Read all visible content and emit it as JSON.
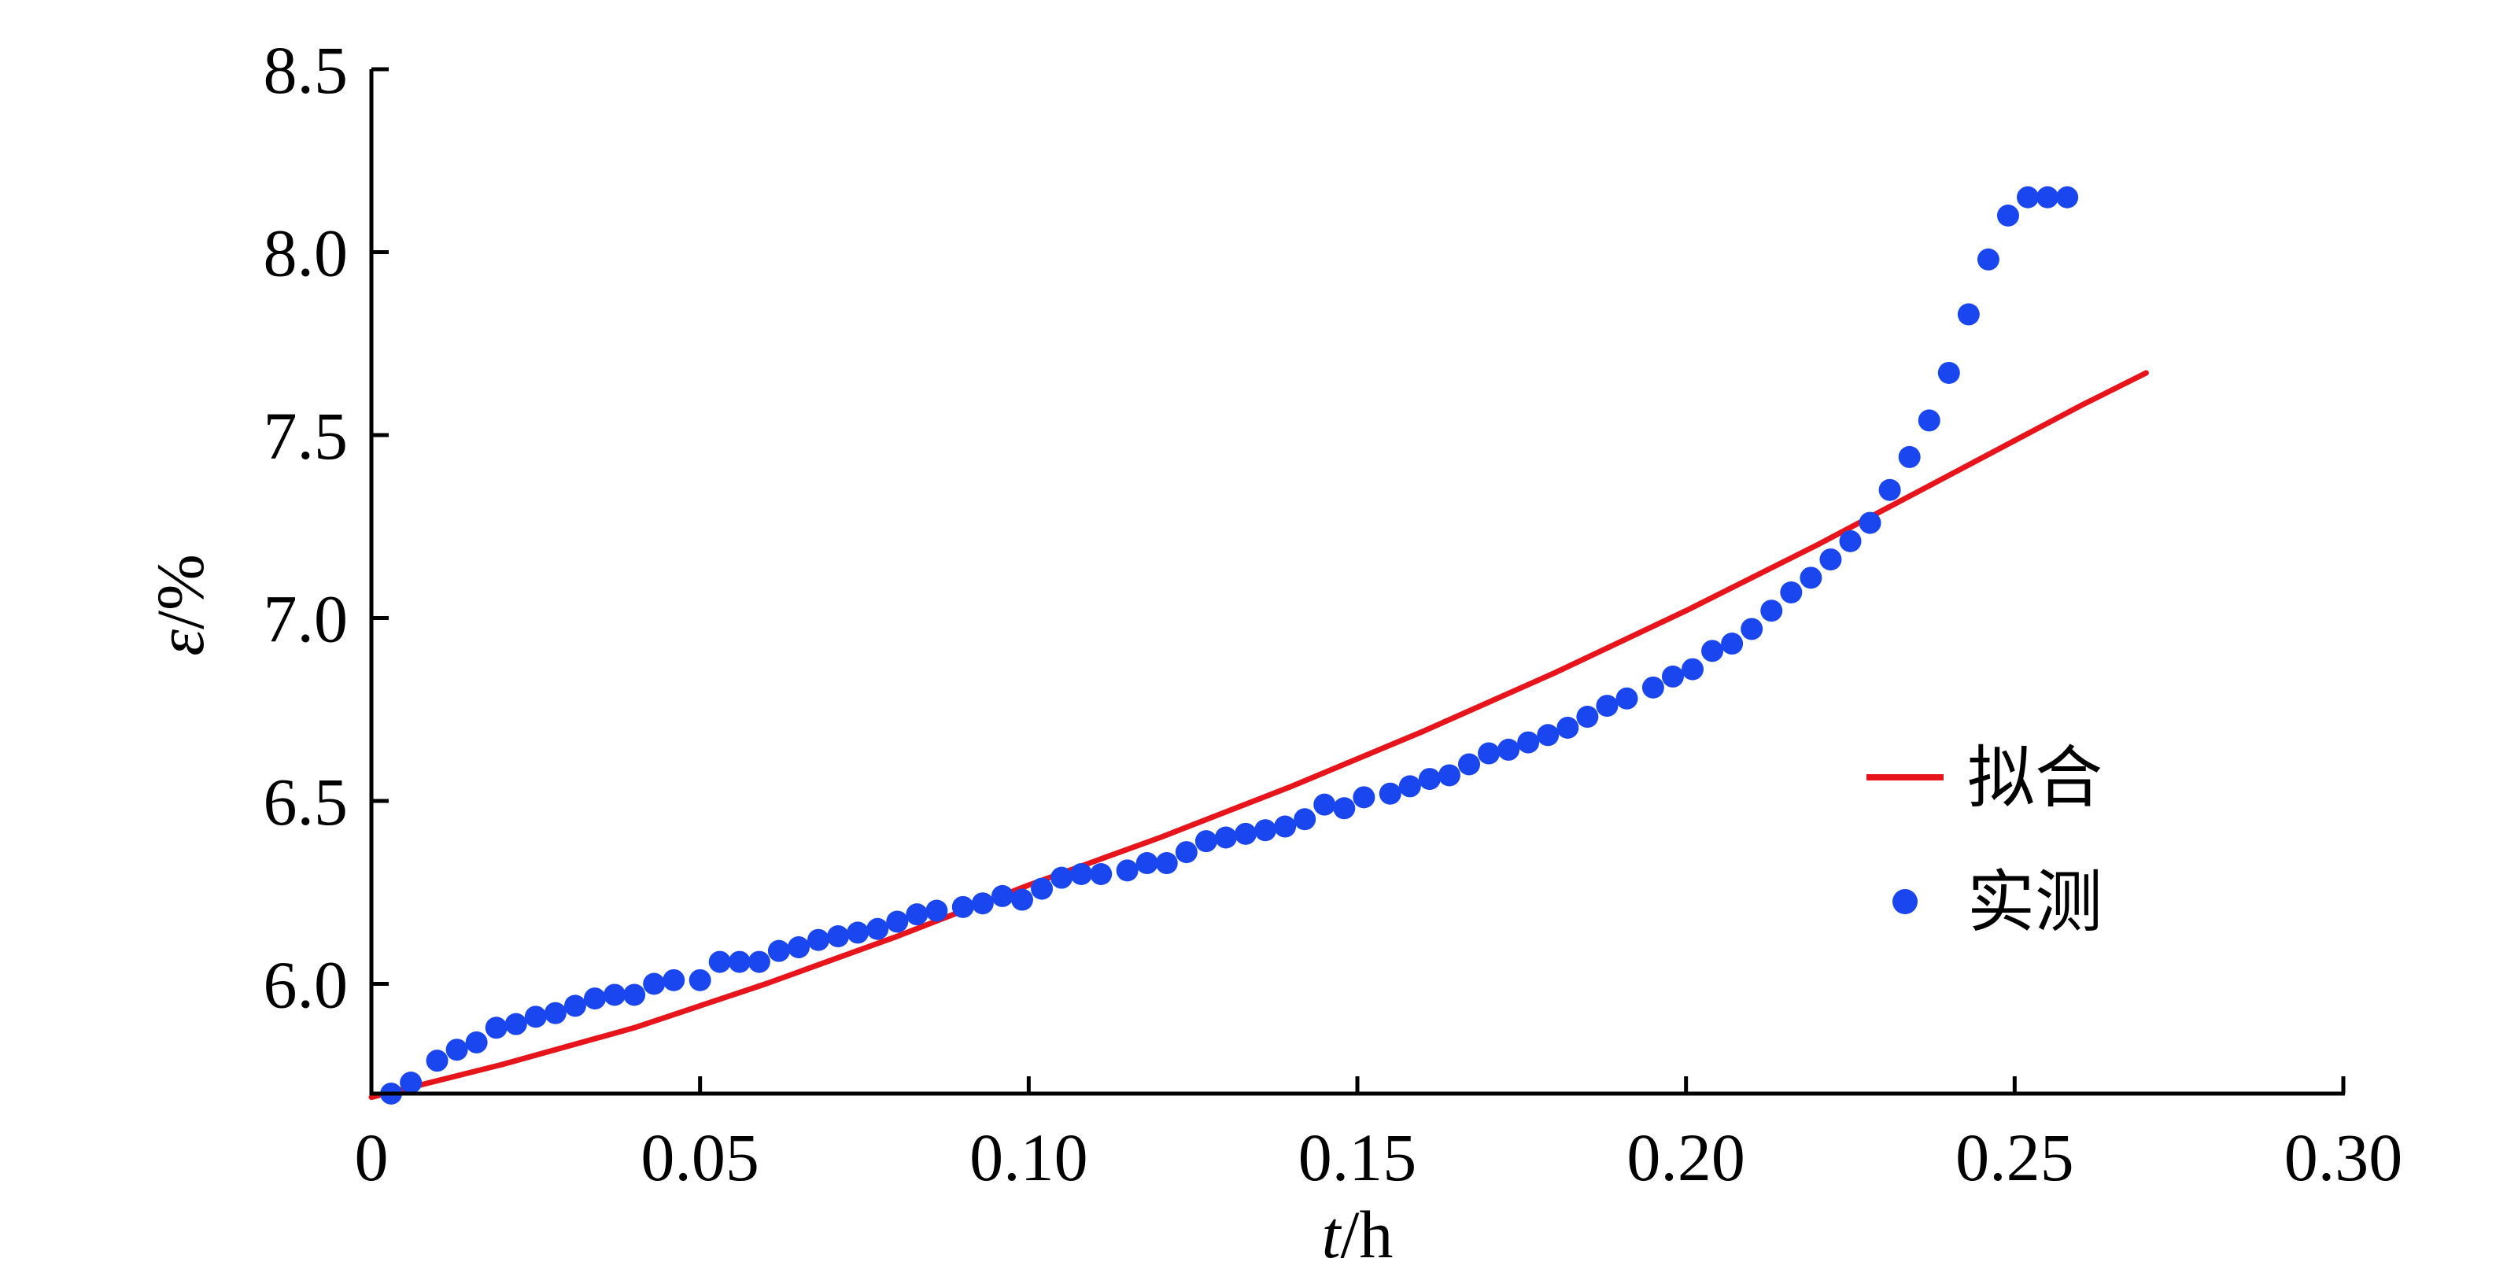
{
  "chart_data": {
    "type": "scatter",
    "xlabel": {
      "italic": "t",
      "rest": "/h"
    },
    "ylabel": {
      "italic": "ε",
      "rest": "/%"
    },
    "xlim": [
      0,
      0.3
    ],
    "ylim": [
      5.7,
      8.5
    ],
    "x_ticks": [
      {
        "value": 0,
        "label": "0"
      },
      {
        "value": 0.05,
        "label": "0.05"
      },
      {
        "value": 0.1,
        "label": "0.10"
      },
      {
        "value": 0.15,
        "label": "0.15"
      },
      {
        "value": 0.2,
        "label": "0.20"
      },
      {
        "value": 0.25,
        "label": "0.25"
      },
      {
        "value": 0.3,
        "label": "0.30"
      }
    ],
    "y_ticks": [
      {
        "value": 6.0,
        "label": "6.0"
      },
      {
        "value": 6.5,
        "label": "6.5"
      },
      {
        "value": 7.0,
        "label": "7.0"
      },
      {
        "value": 7.5,
        "label": "7.5"
      },
      {
        "value": 8.0,
        "label": "8.0"
      },
      {
        "value": 8.5,
        "label": "8.5"
      }
    ],
    "grid": false,
    "legend_position": "right",
    "series": [
      {
        "name": "拟合",
        "kind": "line",
        "color": "#e8141c",
        "x": [
          0,
          0.02,
          0.04,
          0.06,
          0.08,
          0.1,
          0.12,
          0.14,
          0.16,
          0.18,
          0.2,
          0.22,
          0.24,
          0.26,
          0.27
        ],
        "y": [
          5.69,
          5.78,
          5.88,
          6.0,
          6.13,
          6.27,
          6.4,
          6.54,
          6.69,
          6.85,
          7.02,
          7.2,
          7.39,
          7.58,
          7.67
        ]
      },
      {
        "name": "实测",
        "kind": "scatter",
        "color": "#1a46f0",
        "x": [
          0.003,
          0.006,
          0.01,
          0.013,
          0.016,
          0.019,
          0.022,
          0.025,
          0.028,
          0.031,
          0.034,
          0.037,
          0.04,
          0.043,
          0.046,
          0.05,
          0.053,
          0.056,
          0.059,
          0.062,
          0.065,
          0.068,
          0.071,
          0.074,
          0.077,
          0.08,
          0.083,
          0.086,
          0.09,
          0.093,
          0.096,
          0.099,
          0.102,
          0.105,
          0.108,
          0.111,
          0.115,
          0.118,
          0.121,
          0.124,
          0.127,
          0.13,
          0.133,
          0.136,
          0.139,
          0.142,
          0.145,
          0.148,
          0.151,
          0.155,
          0.158,
          0.161,
          0.164,
          0.167,
          0.17,
          0.173,
          0.176,
          0.179,
          0.182,
          0.185,
          0.188,
          0.191,
          0.195,
          0.198,
          0.201,
          0.204,
          0.207,
          0.21,
          0.213,
          0.216,
          0.219,
          0.222,
          0.225,
          0.228,
          0.231,
          0.234,
          0.237,
          0.24,
          0.243,
          0.246,
          0.249,
          0.252,
          0.255,
          0.258
        ],
        "y": [
          5.7,
          5.73,
          5.79,
          5.82,
          5.84,
          5.88,
          5.89,
          5.91,
          5.92,
          5.94,
          5.96,
          5.97,
          5.97,
          6.0,
          6.01,
          6.01,
          6.06,
          6.06,
          6.06,
          6.09,
          6.1,
          6.12,
          6.13,
          6.14,
          6.15,
          6.17,
          6.19,
          6.2,
          6.21,
          6.22,
          6.24,
          6.23,
          6.26,
          6.29,
          6.3,
          6.3,
          6.31,
          6.33,
          6.33,
          6.36,
          6.39,
          6.4,
          6.41,
          6.42,
          6.43,
          6.45,
          6.49,
          6.48,
          6.51,
          6.52,
          6.54,
          6.56,
          6.57,
          6.6,
          6.63,
          6.64,
          6.66,
          6.68,
          6.7,
          6.73,
          6.76,
          6.78,
          6.81,
          6.84,
          6.86,
          6.91,
          6.93,
          6.97,
          7.02,
          7.07,
          7.11,
          7.16,
          7.21,
          7.26,
          7.35,
          7.44,
          7.54,
          7.67,
          7.83,
          7.98,
          8.1,
          8.15,
          8.15,
          8.15
        ]
      }
    ]
  }
}
